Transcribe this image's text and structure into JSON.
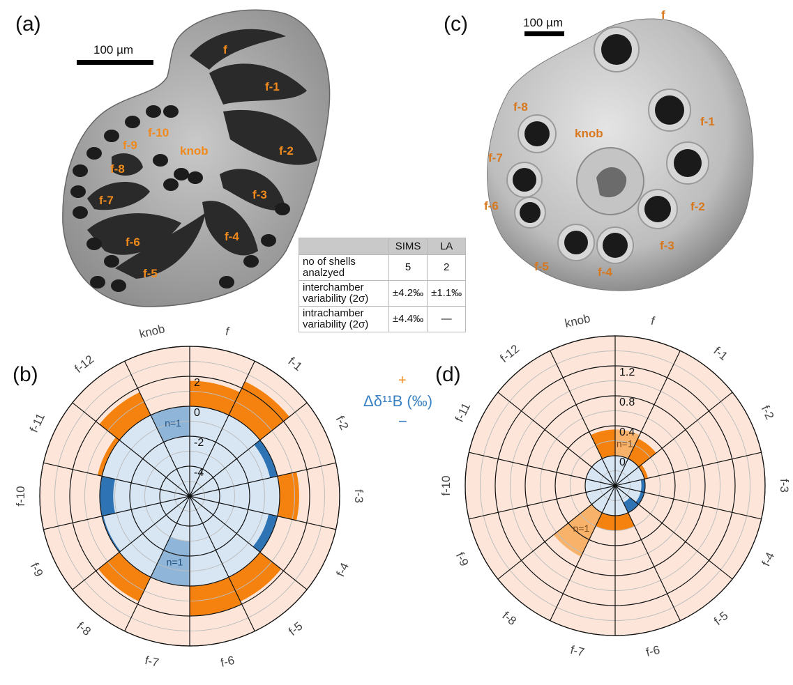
{
  "panels": {
    "a": "(a)",
    "b": "(b)",
    "c": "(c)",
    "d": "(d)"
  },
  "scale_bar": "100 µm",
  "image_a_labels": [
    "f",
    "f-1",
    "f-2",
    "f-3",
    "f-4",
    "f-5",
    "f-6",
    "f-7",
    "f-8",
    "f-9",
    "f-10",
    "knob"
  ],
  "image_c_labels": [
    "f",
    "f-1",
    "f-2",
    "f-3",
    "f-4",
    "f-5",
    "f-6",
    "f-7",
    "f-8",
    "knob"
  ],
  "table": {
    "headers": [
      "",
      "SIMS",
      "LA"
    ],
    "rows": [
      {
        "label": "no of shells analzyed",
        "sims": "5",
        "la": "2"
      },
      {
        "label": "interchamber variability (2σ)",
        "sims": "±4.2‰",
        "la": "±1.1‰"
      },
      {
        "label": "intrachamber variability (2σ)",
        "sims": "±4.4‰",
        "la": "—"
      }
    ]
  },
  "legend": {
    "plus": "+",
    "minus": "−",
    "label": "Δδ¹¹B (‰)"
  },
  "colors": {
    "positive": "#f5820f",
    "negative": "#2e74b5",
    "background_positive": "#fde6d9",
    "background_negative": "#d8e6f4",
    "n1_positive": "#f8b26a",
    "n1_negative": "#8fb5d8"
  },
  "chart_data": [
    {
      "type": "polar-bar",
      "panel": "(b)",
      "categories": [
        "f",
        "f-1",
        "f-2",
        "f-3",
        "f-4",
        "f-5",
        "f-6",
        "f-7",
        "f-8",
        "f-9",
        "f-10",
        "f-11",
        "f-12",
        "knob"
      ],
      "values": [
        1.7,
        2.5,
        -0.5,
        1.3,
        -0.6,
        1.8,
        2.0,
        -3.0,
        1.8,
        -0.1,
        -0.9,
        0.3,
        1.7,
        -2.0
      ],
      "n1_categories": [
        "f-7",
        "knob"
      ],
      "tick_labels": [
        "2",
        "0",
        "-2",
        "-4"
      ],
      "ticks": [
        2,
        0,
        -2,
        -4
      ],
      "rlim": [
        -6,
        4
      ],
      "zero": 0
    },
    {
      "type": "polar-bar",
      "panel": "(d)",
      "categories": [
        "f",
        "f-1",
        "f-2",
        "f-3",
        "f-4",
        "f-5",
        "f-6",
        "f-7",
        "f-8",
        "f-9",
        "f-10",
        "f-11",
        "f-12",
        "knob"
      ],
      "values": [
        0.35,
        0.3,
        0.05,
        -0.05,
        -0.05,
        -0.15,
        0.2,
        0.2,
        0.65,
        null,
        null,
        null,
        null,
        0.35
      ],
      "n1_categories": [
        "f-8",
        "f"
      ],
      "tick_labels": [
        "1.2",
        "0.8",
        "0.4",
        "0"
      ],
      "ticks": [
        1.2,
        0.8,
        0.4,
        0
      ],
      "rlim": [
        -0.4,
        1.6
      ],
      "zero": 0
    }
  ]
}
